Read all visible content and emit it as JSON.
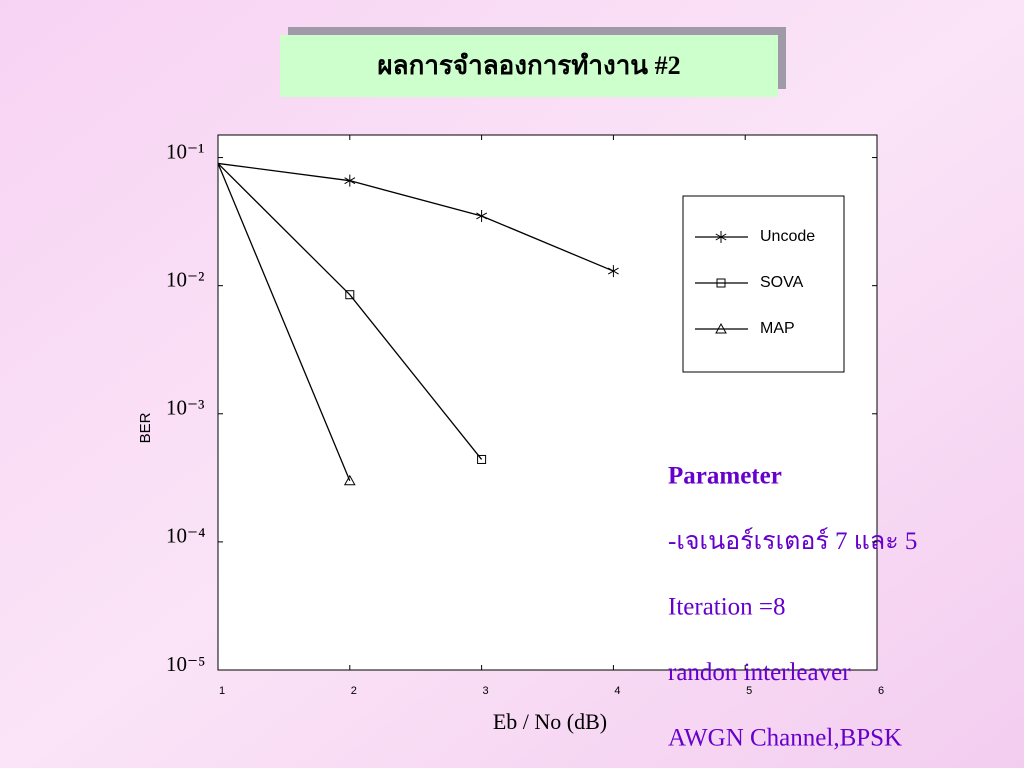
{
  "slide": {
    "title": "ผลการจำลองการทำงาน #2",
    "notes": [
      "Parameter",
      "-เจเนอร์เรเตอร์ 7 และ 5",
      "Iteration =8",
      "randon interleaver",
      "AWGN Channel,BPSK"
    ]
  },
  "chart_data": {
    "type": "line",
    "x_label": "Eb / No (dB)",
    "y_label": "BER",
    "log_y": true,
    "legend": true,
    "x": [
      1,
      2,
      3,
      4
    ],
    "series": [
      {
        "name": "Uncode",
        "color": "#000000",
        "marker": "star",
        "values": [
          0.09,
          0.066,
          0.035,
          0.013
        ]
      },
      {
        "name": "SOVA",
        "color": "#000000",
        "marker": "square",
        "values": [
          0.09,
          0.0085,
          0.00044,
          null
        ]
      },
      {
        "name": "MAP",
        "color": "#000000",
        "marker": "triangle",
        "values": [
          0.09,
          0.0003,
          null,
          null
        ]
      }
    ],
    "xlim": [
      1,
      6
    ],
    "xticks": [
      1,
      2,
      3,
      4,
      5,
      6
    ],
    "ylim": [
      1e-05,
      0.15
    ],
    "yticks": [
      {
        "value": 1e-05,
        "label": "10⁻⁵"
      },
      {
        "value": 0.0001,
        "label": "10⁻⁴"
      },
      {
        "value": 0.001,
        "label": "10⁻³"
      },
      {
        "value": 0.01,
        "label": "10⁻²"
      },
      {
        "value": 0.1,
        "label": "10⁻¹"
      }
    ]
  }
}
